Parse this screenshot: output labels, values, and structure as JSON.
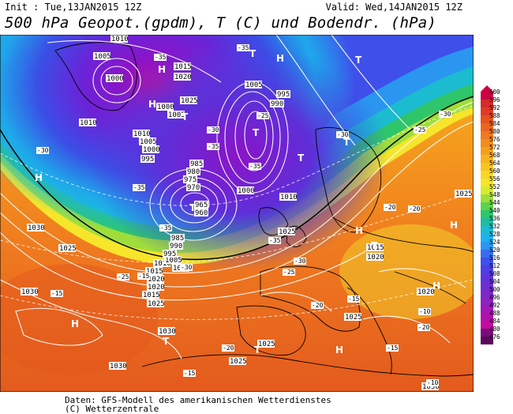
{
  "header": {
    "init": "Init : Tue,13JAN2015 12Z",
    "valid": "Valid: Wed,14JAN2015 12Z",
    "title": "500 hPa Geopot.(gpdm), T (C) und Bodendr. (hPa)"
  },
  "footer": {
    "line1": "Daten: GFS-Modell des amerikanischen Wetterdienstes",
    "line2": "(C) Wetterzentrale"
  },
  "colors": {
    "deep_purple": "#6a0aa8",
    "violet": "#8a2be2",
    "blue": "#3a3ae0",
    "cyan": "#19c0e8",
    "green": "#1ec47a",
    "yellow": "#f2e22a",
    "orange": "#f19a1a",
    "red_orange": "#e35a1e",
    "sea_line": "#000000"
  },
  "legend": {
    "values": [
      "600",
      "596",
      "592",
      "588",
      "584",
      "580",
      "576",
      "572",
      "568",
      "564",
      "560",
      "556",
      "552",
      "548",
      "544",
      "540",
      "536",
      "532",
      "528",
      "524",
      "520",
      "516",
      "512",
      "508",
      "504",
      "500",
      "496",
      "492",
      "488",
      "484",
      "480",
      "476"
    ],
    "colors": [
      "#cc0044",
      "#d42a2a",
      "#de3a24",
      "#e5521f",
      "#ea6520",
      "#ef7a1f",
      "#f28d1d",
      "#f5a01d",
      "#f7b21f",
      "#f9c322",
      "#f9d526",
      "#f6e52a",
      "#d6ea2f",
      "#9fde3a",
      "#5fd24a",
      "#2ec56b",
      "#1ebd9d",
      "#1bbbd0",
      "#1fb1ee",
      "#2a96f0",
      "#356ff0",
      "#3e4fea",
      "#4d3fe2",
      "#5e34d8",
      "#6d2ed0",
      "#7c28c8",
      "#8d22c0",
      "#a018b5",
      "#b210aa",
      "#c50aa0",
      "#7a0a7a",
      "#5a0a5a"
    ]
  },
  "pressure_labels": [
    "1010",
    "1005",
    "1000",
    "1015",
    "1020",
    "1025",
    "1000",
    "1005",
    "1010",
    "995",
    "990",
    "985",
    "980",
    "975",
    "970",
    "965",
    "960",
    "995",
    "1000",
    "1005",
    "1010",
    "1000",
    "1005",
    "1030",
    "1025",
    "1020",
    "1015",
    "1010",
    "1005",
    "1000",
    "995",
    "990",
    "985",
    "1030",
    "1025",
    "1030",
    "1025",
    "1020",
    "1015",
    "1025",
    "1010",
    "1030",
    "1025",
    "1030",
    "1025",
    "1020",
    "1025",
    "1020",
    "1015"
  ],
  "temp_labels": [
    "-35",
    "-35",
    "-35",
    "-35",
    "-35",
    "-35",
    "-35",
    "-30",
    "-30",
    "-30",
    "-30",
    "-30",
    "-25",
    "-25",
    "-25",
    "-20",
    "-20",
    "-20",
    "-20",
    "-15",
    "-15",
    "-15",
    "-15",
    "-15",
    "-10",
    "-25",
    "-20",
    "-30",
    "-10"
  ],
  "pressure_centers": [
    "H",
    "H",
    "H",
    "T",
    "T",
    "T",
    "T",
    "T",
    "T",
    "T",
    "H",
    "T",
    "H",
    "H",
    "T",
    "H",
    "H",
    "T",
    "H"
  ]
}
